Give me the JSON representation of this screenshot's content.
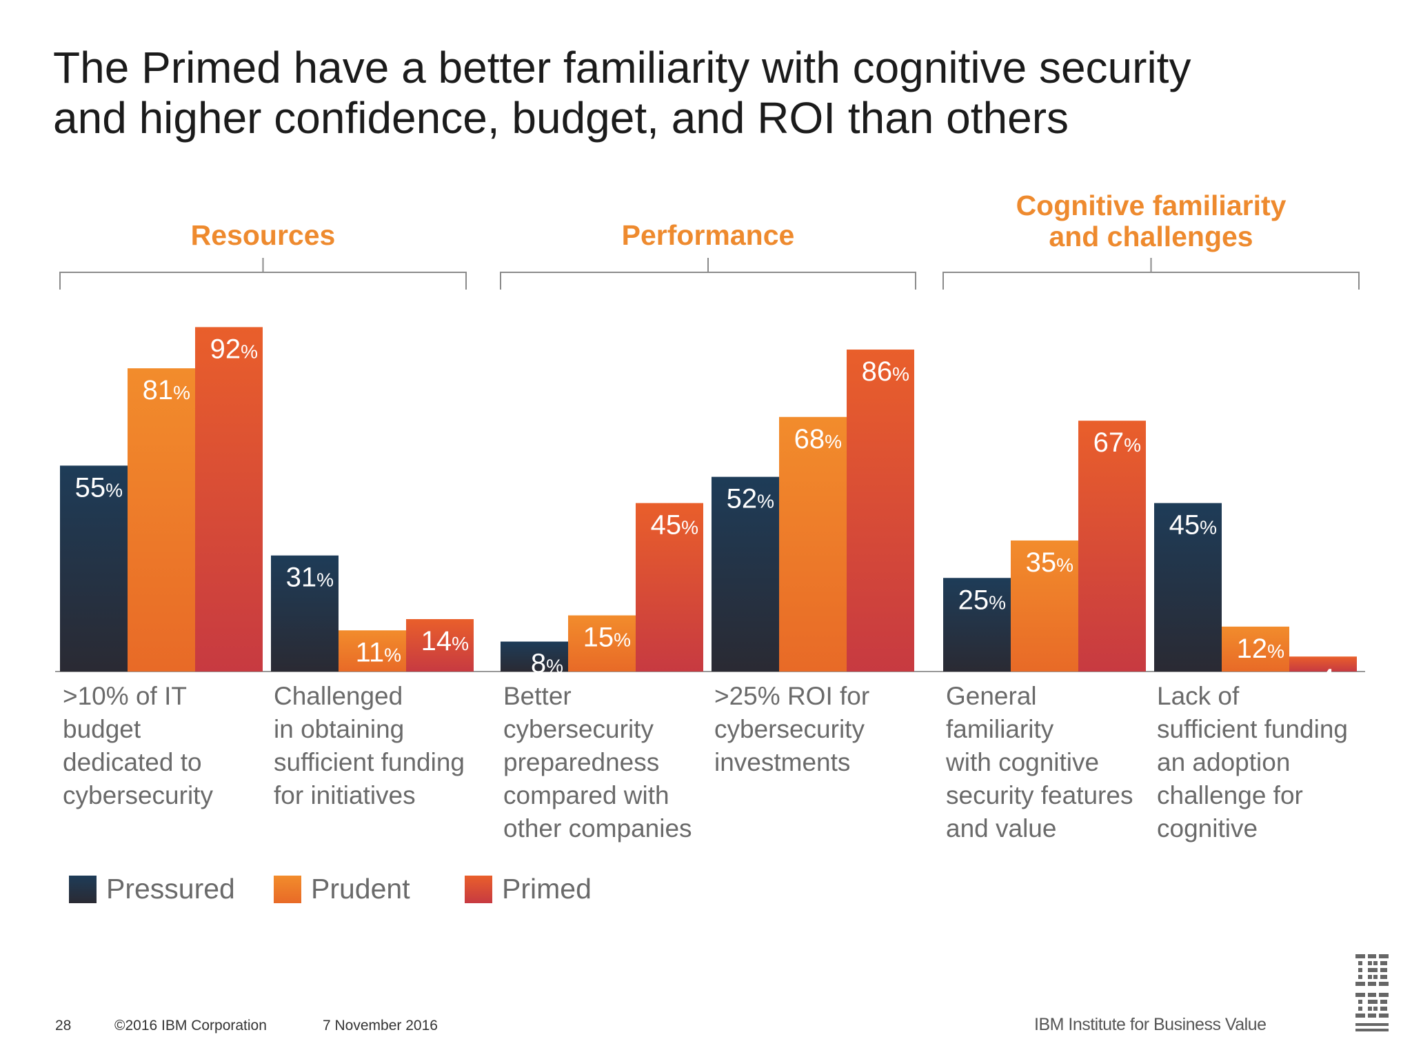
{
  "title": "The Primed have a better familiarity with cognitive security\nand higher confidence, budget, and ROI than others",
  "colors": {
    "pressured": [
      "#1e3c58",
      "#2a2a33"
    ],
    "prudent": [
      "#f28c2c",
      "#e86a27"
    ],
    "primed": [
      "#e95f2b",
      "#c73a41"
    ],
    "heading": "#ee8a2e",
    "label": "#6a6a6a",
    "bracket": "#8a8a8a"
  },
  "chart_data": {
    "type": "bar",
    "ylim": [
      0,
      100
    ],
    "series": [
      {
        "name": "Pressured"
      },
      {
        "name": "Prudent"
      },
      {
        "name": "Primed"
      }
    ],
    "groups": [
      {
        "heading": [
          "Resources"
        ],
        "categories": [
          {
            "label": [
              ">10% of IT",
              "budget",
              "dedicated to",
              "cybersecurity"
            ],
            "values": [
              55,
              81,
              92
            ]
          },
          {
            "label": [
              "Challenged",
              "in obtaining",
              "sufficient funding",
              "for initiatives"
            ],
            "values": [
              31,
              11,
              14
            ]
          }
        ]
      },
      {
        "heading": [
          "Performance"
        ],
        "categories": [
          {
            "label": [
              "Better",
              "cybersecurity",
              "preparedness",
              "compared with",
              "other companies"
            ],
            "values": [
              8,
              15,
              45
            ]
          },
          {
            "label": [
              ">25% ROI for",
              "cybersecurity",
              "investments"
            ],
            "values": [
              52,
              68,
              86
            ]
          }
        ]
      },
      {
        "heading": [
          "Cognitive familiarity",
          "and challenges"
        ],
        "categories": [
          {
            "label": [
              "General",
              "familiarity",
              "with cognitive",
              "security features",
              "and value"
            ],
            "values": [
              25,
              35,
              67
            ]
          },
          {
            "label": [
              "Lack of",
              "sufficient funding",
              "an adoption",
              "challenge for",
              "cognitive"
            ],
            "values": [
              45,
              12,
              4
            ]
          }
        ]
      }
    ],
    "value_suffix": "%"
  },
  "footer": {
    "page": "28",
    "copyright": "©2016 IBM Corporation",
    "date": "7 November 2016",
    "brand": "IBM Institute for Business Value"
  }
}
